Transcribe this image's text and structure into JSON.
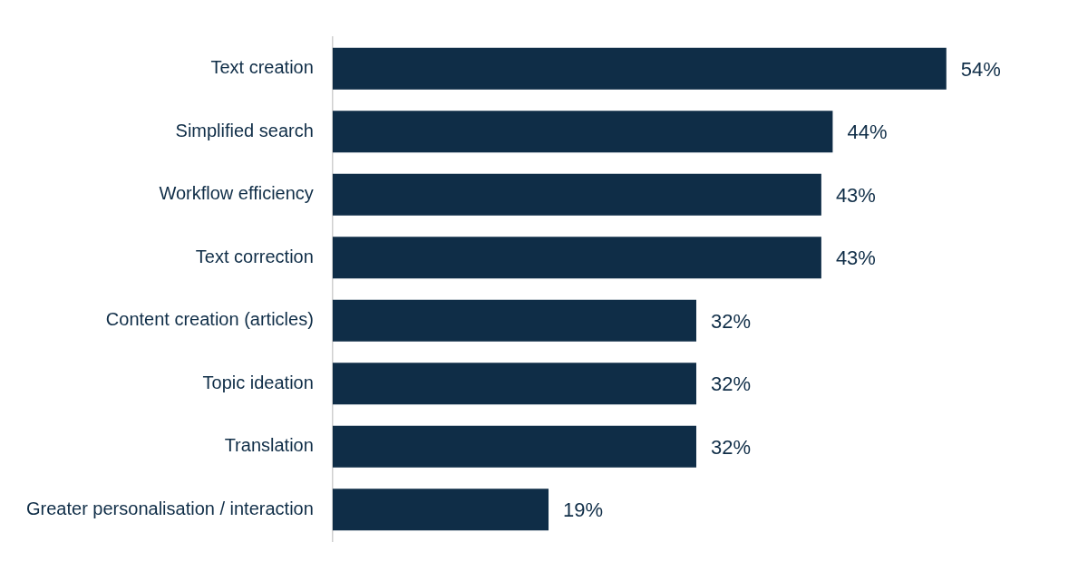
{
  "chart_data": {
    "type": "bar",
    "orientation": "horizontal",
    "categories": [
      "Text creation",
      "Simplified search",
      "Workflow efficiency",
      "Text correction",
      "Content creation (articles)",
      "Topic ideation",
      "Translation",
      "Greater personalisation / interaction"
    ],
    "values": [
      54,
      44,
      43,
      43,
      32,
      32,
      32,
      19
    ],
    "value_labels": [
      "54%",
      "44%",
      "43%",
      "43%",
      "32%",
      "32%",
      "32%",
      "19%"
    ],
    "color": "#0f2d47",
    "tick_labels": "y"
  }
}
